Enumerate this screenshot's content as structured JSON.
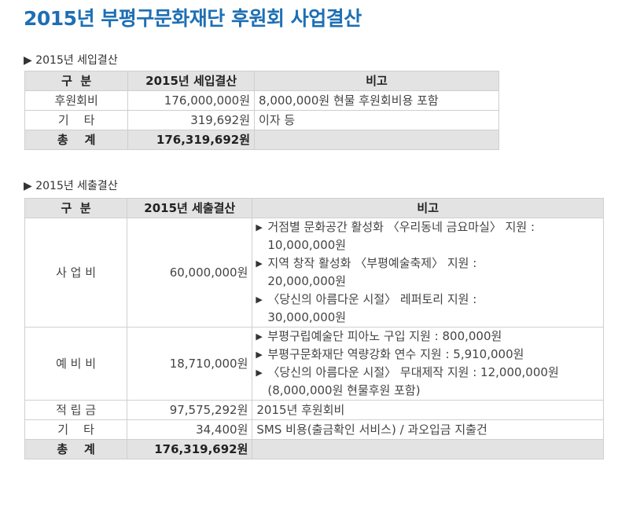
{
  "title": "2015년 부평구문화재단 후원회 사업결산",
  "income": {
    "label": "▶ 2015년 세입결산",
    "headers": [
      "구  분",
      "2015년 세입결산",
      "비고"
    ],
    "rows": [
      {
        "category": "후원회비",
        "amount": "176,000,000원",
        "note": "8,000,000원 현물 후원회비용 포함"
      },
      {
        "category": "기    타",
        "amount": "319,692원",
        "note": "이자 등"
      }
    ],
    "total": {
      "category": "총    계",
      "amount": "176,319,692원"
    }
  },
  "expense": {
    "label": "▶ 2015년 세출결산",
    "headers": [
      "구  분",
      "2015년 세출결산",
      "비고"
    ],
    "business": {
      "category": "사 업 비",
      "amount": "60,000,000원",
      "items": [
        {
          "line1": "거점별 문화공간 활성화 〈우리동네 금요마실〉 지원 :",
          "line2": "10,000,000원"
        },
        {
          "line1": "지역 창작 활성화 〈부평예술축제〉 지원 :",
          "line2": "20,000,000원"
        },
        {
          "line1": "〈당신의 아름다운 시절〉 레퍼토리 지원 :",
          "line2": "30,000,000원"
        }
      ]
    },
    "reserve": {
      "category": "예 비 비",
      "amount": "18,710,000원",
      "items": [
        {
          "line1": "부평구립예술단 피아노 구입 지원 : 800,000원",
          "line2": ""
        },
        {
          "line1": "부평구문화재단 역량강화 연수 지원 : 5,910,000원",
          "line2": ""
        },
        {
          "line1": "〈당신의 아름다운 시절〉 무대제작 지원 : 12,000,000원",
          "line2": "(8,000,000원 현물후원 포함)"
        }
      ]
    },
    "rows": [
      {
        "category": "적 립 금",
        "amount": "97,575,292원",
        "note": "2015년 후원회비"
      },
      {
        "category": "기    타",
        "amount": "34,400원",
        "note": "SMS 비용(출금확인 서비스) / 과오입금 지출건"
      }
    ],
    "total": {
      "category": "총    계",
      "amount": "176,319,692원"
    }
  }
}
